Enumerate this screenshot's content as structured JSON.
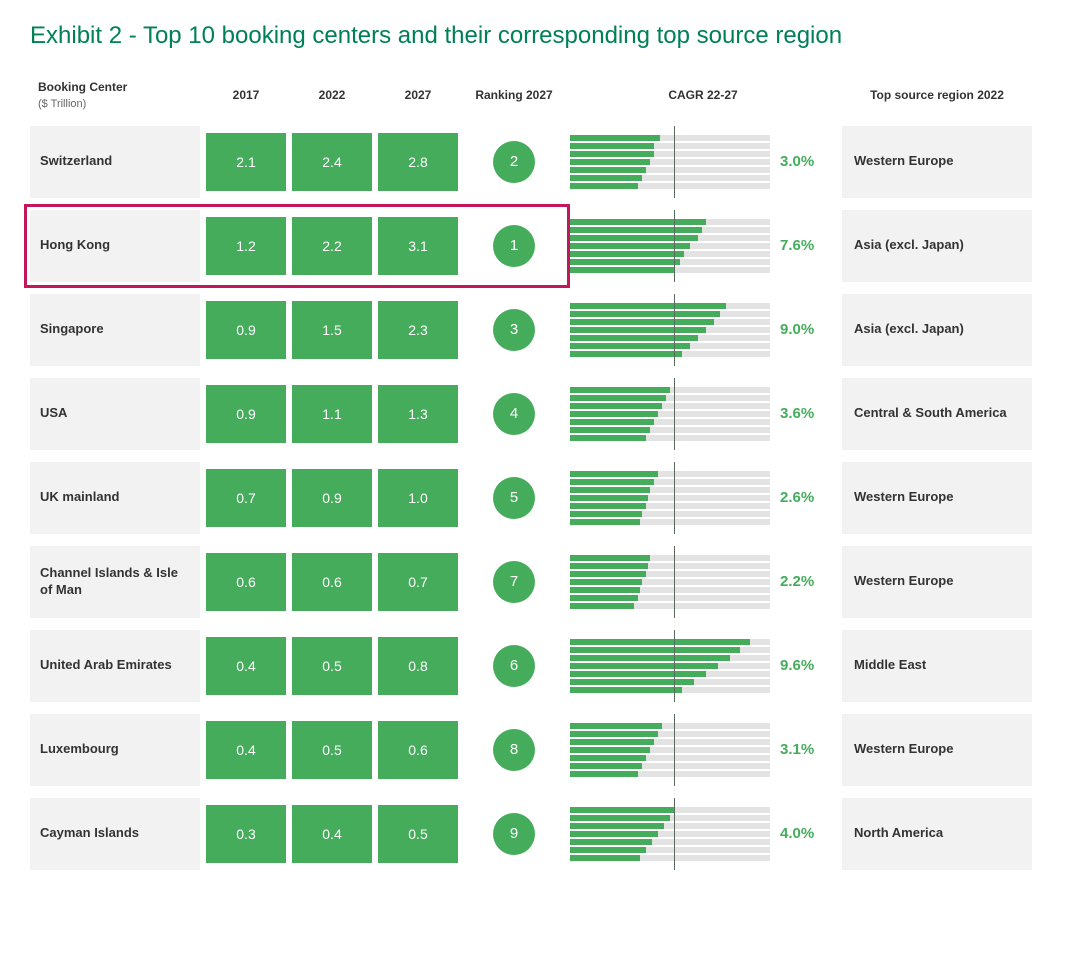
{
  "title": "Exhibit 2 - Top 10 booking centers and their corresponding top source region",
  "title_color": "#008057",
  "columns": {
    "center": "Booking Center",
    "center_sub": "($ Trillion)",
    "y2017": "2017",
    "y2022": "2022",
    "y2027": "2027",
    "rank": "Ranking 2027",
    "cagr": "CAGR 22-27",
    "source": "Top source region 2022"
  },
  "style": {
    "green": "#45ac5c",
    "cagr_text_color": "#45ac5c",
    "bar_bg": "#e3e3e3",
    "row_bg": "#f2f2f2",
    "vline_color": "#5a6b5e",
    "vline_pos_pct": 52,
    "highlight_color": "#c2185b",
    "bar_count": 7,
    "cagr_max": 10.0
  },
  "highlight_row_index": 1,
  "rows": [
    {
      "center": "Switzerland",
      "y2017": "2.1",
      "y2022": "2.4",
      "y2027": "2.8",
      "rank": "2",
      "cagr": 3.0,
      "cagr_label": "3.0%",
      "bar_fills": [
        45,
        42,
        42,
        40,
        38,
        36,
        34
      ],
      "source": "Western Europe"
    },
    {
      "center": "Hong Kong",
      "y2017": "1.2",
      "y2022": "2.2",
      "y2027": "3.1",
      "rank": "1",
      "cagr": 7.6,
      "cagr_label": "7.6%",
      "bar_fills": [
        68,
        66,
        64,
        60,
        57,
        55,
        52
      ],
      "source": "Asia (excl. Japan)"
    },
    {
      "center": "Singapore",
      "y2017": "0.9",
      "y2022": "1.5",
      "y2027": "2.3",
      "rank": "3",
      "cagr": 9.0,
      "cagr_label": "9.0%",
      "bar_fills": [
        78,
        75,
        72,
        68,
        64,
        60,
        56
      ],
      "source": "Asia (excl. Japan)"
    },
    {
      "center": "USA",
      "y2017": "0.9",
      "y2022": "1.1",
      "y2027": "1.3",
      "rank": "4",
      "cagr": 3.6,
      "cagr_label": "3.6%",
      "bar_fills": [
        50,
        48,
        46,
        44,
        42,
        40,
        38
      ],
      "source": "Central & South America"
    },
    {
      "center": "UK mainland",
      "y2017": "0.7",
      "y2022": "0.9",
      "y2027": "1.0",
      "rank": "5",
      "cagr": 2.6,
      "cagr_label": "2.6%",
      "bar_fills": [
        44,
        42,
        40,
        39,
        38,
        36,
        35
      ],
      "source": "Western Europe"
    },
    {
      "center": "Channel Islands & Isle of Man",
      "y2017": "0.6",
      "y2022": "0.6",
      "y2027": "0.7",
      "rank": "7",
      "cagr": 2.2,
      "cagr_label": "2.2%",
      "bar_fills": [
        40,
        39,
        38,
        36,
        35,
        34,
        32
      ],
      "source": "Western Europe"
    },
    {
      "center": "United Arab Emirates",
      "y2017": "0.4",
      "y2022": "0.5",
      "y2027": "0.8",
      "rank": "6",
      "cagr": 9.6,
      "cagr_label": "9.6%",
      "bar_fills": [
        90,
        85,
        80,
        74,
        68,
        62,
        56
      ],
      "source": "Middle East"
    },
    {
      "center": "Luxembourg",
      "y2017": "0.4",
      "y2022": "0.5",
      "y2027": "0.6",
      "rank": "8",
      "cagr": 3.1,
      "cagr_label": "3.1%",
      "bar_fills": [
        46,
        44,
        42,
        40,
        38,
        36,
        34
      ],
      "source": "Western Europe"
    },
    {
      "center": "Cayman Islands",
      "y2017": "0.3",
      "y2022": "0.4",
      "y2027": "0.5",
      "rank": "9",
      "cagr": 4.0,
      "cagr_label": "4.0%",
      "bar_fills": [
        52,
        50,
        47,
        44,
        41,
        38,
        35
      ],
      "source": "North America"
    }
  ]
}
